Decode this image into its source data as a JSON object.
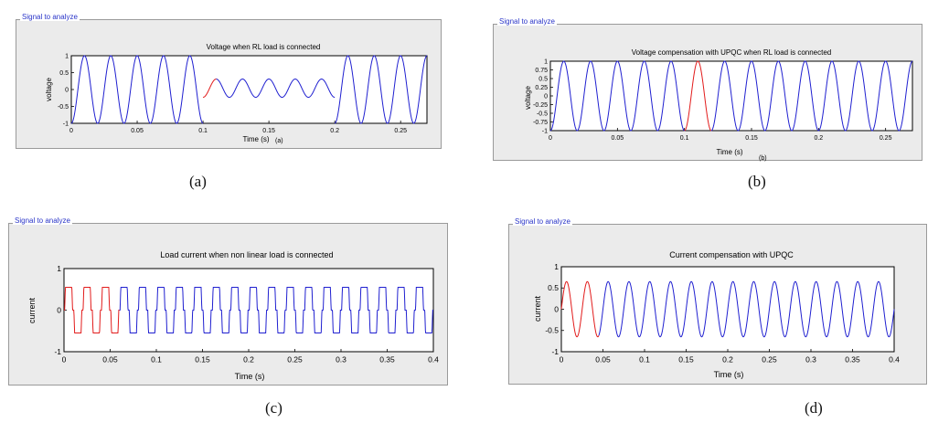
{
  "colors": {
    "normal": "#1f1fd0",
    "highlight": "#e21b1b",
    "axes": "#000000",
    "panel_bg": "#ebebeb",
    "panel_title": "#2a35c8"
  },
  "chart_data": [
    {
      "type": "line",
      "panel_title": "Signal to analyze",
      "title": "Voltage when RL load is connected",
      "xlabel": "Time (s)",
      "ylabel": "voltage",
      "caption": "(a)",
      "inner_label": "(a)",
      "xlim": [
        0,
        0.27
      ],
      "ylim": [
        -1,
        1
      ],
      "xticks": [
        0,
        0.05,
        0.1,
        0.15,
        0.2,
        0.25
      ],
      "xtick_labels": [
        "0",
        "0.05",
        "0.1",
        "0.15",
        "0.2",
        "0.25"
      ],
      "yticks": [
        -1,
        -0.5,
        0,
        0.5,
        1
      ],
      "ytick_labels": [
        "-1",
        "-0.5",
        "0",
        "0.5",
        "1"
      ],
      "signal": {
        "waveform": "sine",
        "frequency_hz": 50,
        "phase_deg": -90
      },
      "segments": [
        {
          "x_start": 0,
          "x_end": 0.1,
          "amplitude": 1,
          "offset": 0,
          "color": "normal"
        },
        {
          "x_start": 0.1,
          "x_end": 0.11,
          "amplitude": 0.27,
          "offset": 0.04,
          "color": "highlight"
        },
        {
          "x_start": 0.11,
          "x_end": 0.2,
          "amplitude": 0.27,
          "offset": 0.04,
          "color": "normal"
        },
        {
          "x_start": 0.2,
          "x_end": 0.27,
          "amplitude": 1,
          "offset": 0,
          "color": "normal"
        }
      ]
    },
    {
      "type": "line",
      "panel_title": "Signal to analyze",
      "title": "Voltage compensation with UPQC  when RL load is connected",
      "xlabel": "Time (s)",
      "ylabel": "voltage",
      "caption": "(b)",
      "inner_label": "(b)",
      "xlim": [
        0,
        0.27
      ],
      "ylim": [
        -1,
        1
      ],
      "xticks": [
        0,
        0.05,
        0.1,
        0.15,
        0.2,
        0.25
      ],
      "xtick_labels": [
        "0",
        "0.05",
        "0.1",
        "0.15",
        "0.2",
        "0.25"
      ],
      "yticks": [
        -1,
        -0.75,
        -0.5,
        -0.25,
        0,
        0.25,
        0.5,
        0.75,
        1
      ],
      "ytick_labels": [
        "-1",
        "-0.75",
        "-0.5",
        "-0.25",
        "0",
        "0.25",
        "0.5",
        "0.75",
        "1"
      ],
      "signal": {
        "waveform": "sine",
        "frequency_hz": 50,
        "phase_deg": -90
      },
      "segments": [
        {
          "x_start": 0,
          "x_end": 0.1,
          "amplitude": 1,
          "offset": 0,
          "color": "normal"
        },
        {
          "x_start": 0.1,
          "x_end": 0.12,
          "amplitude": 1,
          "offset": 0,
          "color": "highlight"
        },
        {
          "x_start": 0.12,
          "x_end": 0.27,
          "amplitude": 1,
          "offset": 0,
          "color": "normal"
        }
      ]
    },
    {
      "type": "line",
      "panel_title": "Signal to analyze",
      "title": "Load current when non linear load is connected",
      "xlabel": "Time (s)",
      "ylabel": "current",
      "caption": "(c)",
      "inner_label": "",
      "xlim": [
        0,
        0.4
      ],
      "ylim": [
        -1,
        1
      ],
      "xticks": [
        0,
        0.05,
        0.1,
        0.15,
        0.2,
        0.25,
        0.3,
        0.35,
        0.4
      ],
      "xtick_labels": [
        "0",
        "0.05",
        "0.1",
        "0.15",
        "0.2",
        "0.25",
        "0.3",
        "0.35",
        "0.4"
      ],
      "yticks": [
        -1,
        0,
        1
      ],
      "ytick_labels": [
        "-1",
        "0",
        "1"
      ],
      "signal": {
        "waveform": "rectified_square",
        "frequency_hz": 50,
        "phase_deg": 0,
        "pulse_fraction": 0.7
      },
      "segments": [
        {
          "x_start": 0,
          "x_end": 0.06,
          "amplitude": 0.55,
          "offset": 0,
          "color": "highlight"
        },
        {
          "x_start": 0.06,
          "x_end": 0.4,
          "amplitude": 0.55,
          "offset": 0,
          "color": "normal"
        }
      ]
    },
    {
      "type": "line",
      "panel_title": "Signal to analyze",
      "title": "Current compensation with UPQC",
      "xlabel": "Time (s)",
      "ylabel": "current",
      "caption": "(d)",
      "inner_label": "",
      "xlim": [
        0,
        0.4
      ],
      "ylim": [
        -1,
        1
      ],
      "xticks": [
        0,
        0.05,
        0.1,
        0.15,
        0.2,
        0.25,
        0.3,
        0.35,
        0.4
      ],
      "xtick_labels": [
        "0",
        "0.05",
        "0.1",
        "0.15",
        "0.2",
        "0.25",
        "0.3",
        "0.35",
        "0.4"
      ],
      "yticks": [
        -1,
        -0.5,
        0,
        0.5,
        1
      ],
      "ytick_labels": [
        "-1",
        "-0.5",
        "0",
        "0.5",
        "1"
      ],
      "signal": {
        "waveform": "sine",
        "frequency_hz": 40,
        "phase_deg": 0
      },
      "segments": [
        {
          "x_start": 0,
          "x_end": 0.045,
          "amplitude": 0.65,
          "offset": 0,
          "color": "highlight"
        },
        {
          "x_start": 0.045,
          "x_end": 0.4,
          "amplitude": 0.65,
          "offset": 0,
          "color": "normal"
        }
      ]
    }
  ]
}
